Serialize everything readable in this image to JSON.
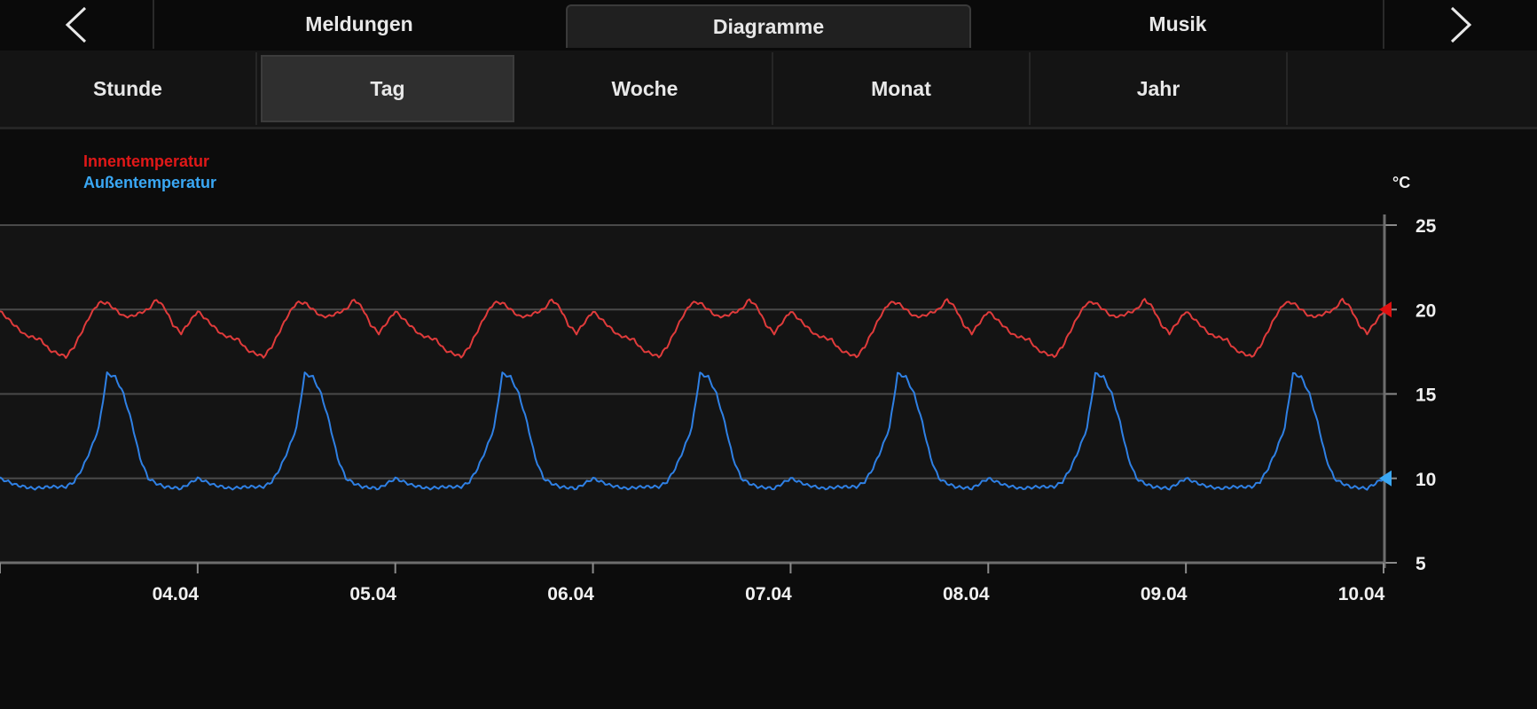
{
  "nav": {
    "prev_icon": "chevron-left-icon",
    "next_icon": "chevron-right-icon",
    "tabs": [
      {
        "label": "Meldungen",
        "active": false
      },
      {
        "label": "Diagramme",
        "active": true
      },
      {
        "label": "Musik",
        "active": false
      }
    ]
  },
  "range_tabs": [
    {
      "label": "Stunde",
      "active": false
    },
    {
      "label": "Tag",
      "active": true
    },
    {
      "label": "Woche",
      "active": false
    },
    {
      "label": "Monat",
      "active": false
    },
    {
      "label": "Jahr",
      "active": false
    }
  ],
  "chart_data": {
    "type": "line",
    "unit": "°C",
    "ylim": [
      5,
      25
    ],
    "yticks": [
      5,
      10,
      15,
      20,
      25
    ],
    "xtick_labels": [
      "04.04",
      "05.04",
      "06.04",
      "07.04",
      "08.04",
      "09.04",
      "10.04"
    ],
    "xlim_days": [
      3.0,
      10.0
    ],
    "grid": true,
    "legend_position": "top-left",
    "series": [
      {
        "name": "Innentemperatur",
        "color": "#e03b3b",
        "marker_color": "#e01010",
        "current_value": 20,
        "profile_hours": [
          0,
          3,
          5,
          6,
          7,
          8,
          9,
          11,
          12,
          13,
          15,
          16,
          17,
          18,
          19,
          20,
          21,
          22,
          24
        ],
        "profile_values": [
          19.9,
          18.5,
          18.2,
          17.6,
          17.4,
          17.2,
          17.8,
          19.7,
          20.4,
          20.4,
          19.6,
          19.6,
          19.8,
          20.0,
          20.6,
          20.1,
          19.1,
          18.6,
          19.9
        ]
      },
      {
        "name": "Außentemperatur",
        "color": "#2f80e4",
        "marker_color": "#3aa8f5",
        "current_value": 10,
        "profile_hours": [
          0,
          2,
          4,
          6,
          8,
          9,
          10,
          11,
          12,
          13,
          14,
          15,
          16,
          17,
          18,
          19,
          20,
          22,
          24
        ],
        "profile_values": [
          10.0,
          9.6,
          9.4,
          9.5,
          9.5,
          9.8,
          10.6,
          11.7,
          13.0,
          16.2,
          16.0,
          15.0,
          13.3,
          11.2,
          10.0,
          9.7,
          9.5,
          9.4,
          10.0
        ]
      }
    ]
  }
}
